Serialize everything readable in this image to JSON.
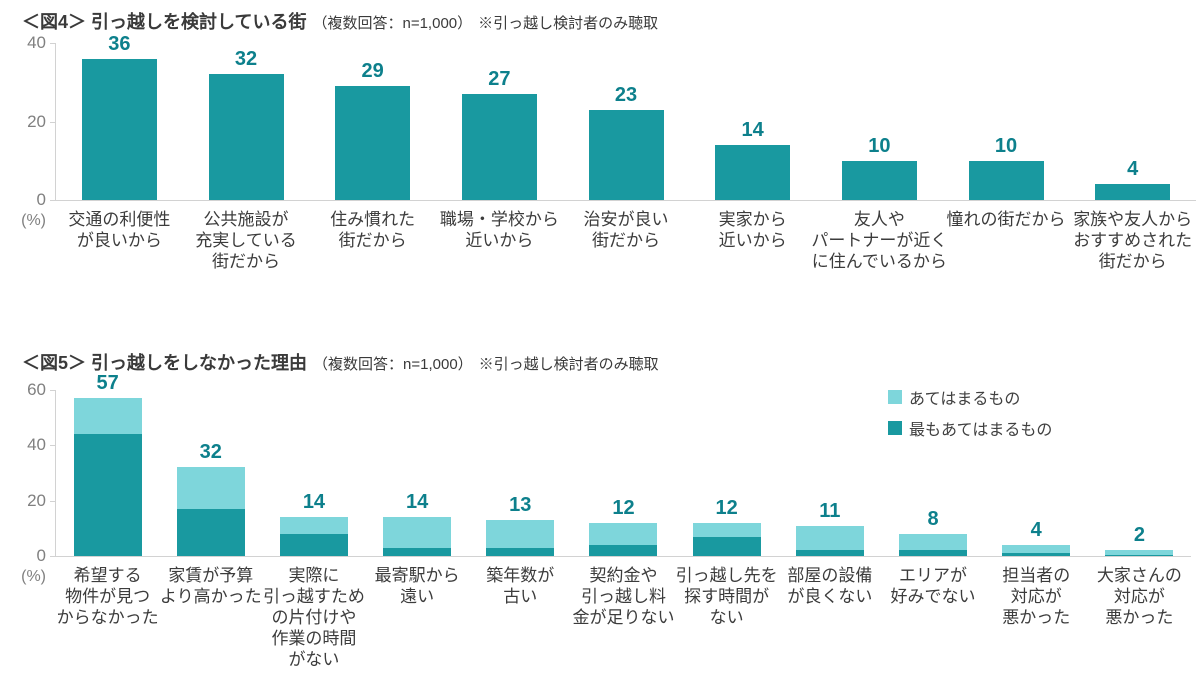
{
  "colors": {
    "bar_dark": "#1999A0",
    "bar_light": "#7ED6DB",
    "value_label": "#0D808C",
    "axis_text": "#808080",
    "axis_line": "#D2D2D2",
    "category_text": "#3C3C3C",
    "title_text": "#3A3A3A"
  },
  "chart_data": [
    {
      "id": "figure4",
      "type": "bar",
      "title": "＜図4＞ 引っ越しを検討している街",
      "subtitle": "（複数回答：n=1,000）",
      "note": "※引っ越し検討者のみ聴取",
      "ylabel": "(%)",
      "ylim": [
        0,
        40
      ],
      "yticks": [
        40,
        20,
        0
      ],
      "grid": false,
      "color_key": "bar_dark",
      "categories": [
        [
          "交通の利便性",
          "が良いから"
        ],
        [
          "公共施設が",
          "充実している",
          "街だから"
        ],
        [
          "住み慣れた",
          "街だから"
        ],
        [
          "職場・学校から",
          "近いから"
        ],
        [
          "治安が良い",
          "街だから"
        ],
        [
          "実家から",
          "近いから"
        ],
        [
          "友人や",
          "パートナーが近く",
          "に住んでいるから"
        ],
        [
          "憧れの街だから"
        ],
        [
          "家族や友人から",
          "おすすめされた",
          "街だから"
        ]
      ],
      "values": [
        36,
        32,
        29,
        27,
        23,
        14,
        10,
        10,
        4
      ]
    },
    {
      "id": "figure5",
      "type": "stacked-bar",
      "title": "＜図5＞ 引っ越しをしなかった理由",
      "subtitle": "（複数回答：n=1,000）",
      "note": "※引っ越し検討者のみ聴取",
      "ylabel": "(%)",
      "ylim": [
        0,
        60
      ],
      "yticks": [
        60,
        40,
        20,
        0
      ],
      "grid": false,
      "legend": [
        {
          "label": "あてはまるもの",
          "color_key": "bar_light"
        },
        {
          "label": "最もあてはまるもの",
          "color_key": "bar_dark"
        }
      ],
      "legend_position": "top-right",
      "categories": [
        [
          "希望する",
          "物件が見つ",
          "からなかった"
        ],
        [
          "家賃が予算",
          "より高かった"
        ],
        [
          "実際に",
          "引っ越すため",
          "の片付けや",
          "作業の時間",
          "がない"
        ],
        [
          "最寄駅から",
          "遠い"
        ],
        [
          "築年数が",
          "古い"
        ],
        [
          "契約金や",
          "引っ越し料",
          "金が足りない"
        ],
        [
          "引っ越し先を",
          "探す時間が",
          "ない"
        ],
        [
          "部屋の設備",
          "が良くない"
        ],
        [
          "エリアが",
          "好みでない"
        ],
        [
          "担当者の",
          "対応が",
          "悪かった"
        ],
        [
          "大家さんの",
          "対応が",
          "悪かった"
        ]
      ],
      "totals": [
        57,
        32,
        14,
        14,
        13,
        12,
        12,
        11,
        8,
        4,
        2
      ],
      "series": [
        {
          "name": "最もあてはまるもの",
          "color_key": "bar_dark",
          "values": [
            44,
            17,
            8,
            3,
            3,
            4,
            7,
            2,
            2,
            1,
            0.5
          ]
        },
        {
          "name": "あてはまるもの",
          "color_key": "bar_light",
          "values": [
            13,
            15,
            6,
            11,
            10,
            8,
            5,
            9,
            6,
            3,
            1.5
          ]
        }
      ]
    }
  ]
}
